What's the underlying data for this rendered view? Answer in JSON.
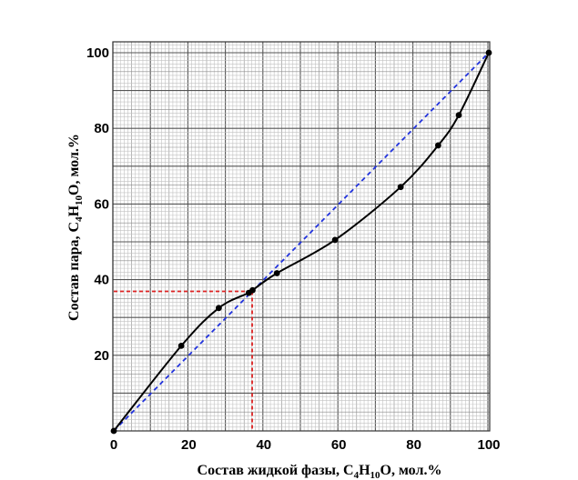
{
  "chart_data": {
    "type": "line",
    "xlabel": "Состав жидкой фазы,  C4H10O, мол.%",
    "ylabel": "Состав пара,  C4H10O, мол.%",
    "xlabel_parts": [
      "Состав жидкой фазы,  C",
      "4",
      "H",
      "10",
      "O, мол.%"
    ],
    "ylabel_parts": [
      "Состав пара,  C",
      "4",
      "H",
      "10",
      "O, мол.%"
    ],
    "xlim": [
      0,
      100
    ],
    "ylim": [
      0,
      100
    ],
    "x_ticks": [
      0,
      20,
      40,
      60,
      80,
      100
    ],
    "y_ticks": [
      20,
      40,
      60,
      80,
      100
    ],
    "grid": true,
    "series": [
      {
        "style": "solid",
        "color": "#000000",
        "markers": true,
        "x": [
          0,
          18,
          28,
          36,
          37,
          43.5,
          59,
          76.5,
          86.5,
          92,
          100
        ],
        "y": [
          0,
          22.5,
          32.5,
          36.5,
          37.2,
          41.7,
          50.5,
          64.5,
          75.5,
          83.5,
          100
        ]
      },
      {
        "style": "dashed",
        "color": "#2233dd",
        "x": [
          0,
          100
        ],
        "y": [
          0,
          100
        ]
      }
    ],
    "annotations": [
      {
        "type": "azeotrope-guide",
        "color": "#dd2222",
        "style": "dashed",
        "x": 36.9,
        "y": 36.9
      }
    ]
  }
}
